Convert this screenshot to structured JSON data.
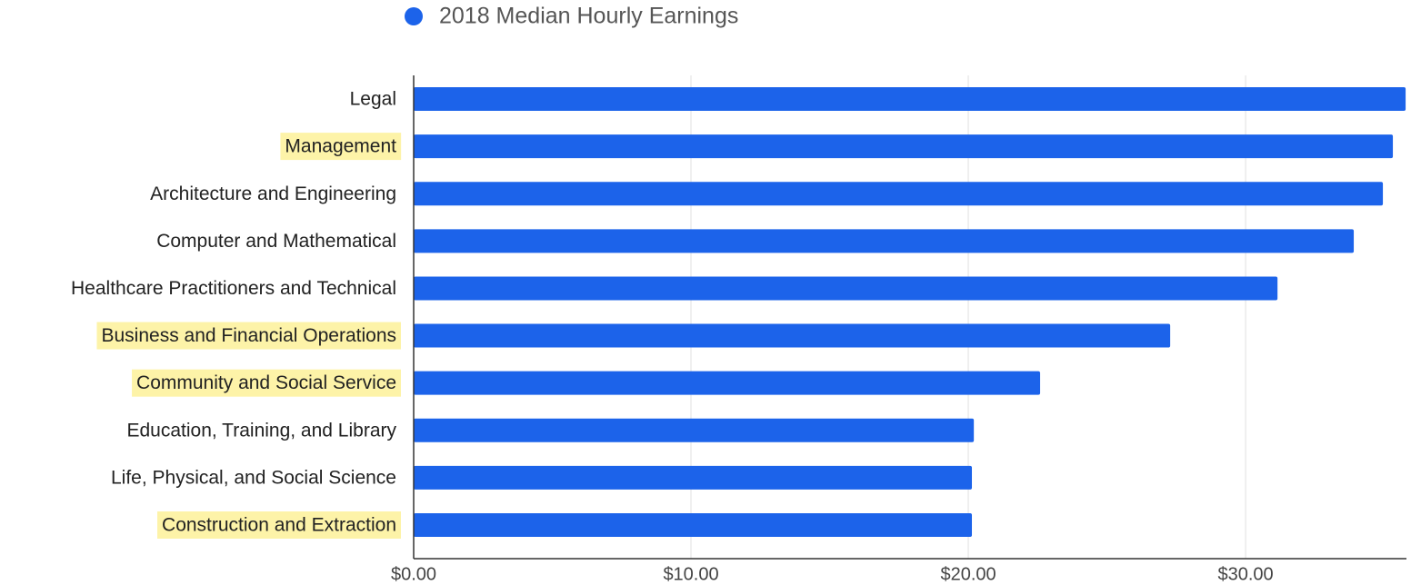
{
  "chart_data": {
    "type": "barh",
    "series": [
      {
        "name": "2018 Median Hourly Earnings",
        "color": "#1c63ea",
        "values": [
          35.77,
          35.31,
          34.95,
          33.9,
          31.15,
          27.28,
          22.59,
          20.2,
          20.13,
          20.13
        ]
      }
    ],
    "categories": [
      "Legal",
      "Management",
      "Architecture and Engineering",
      "Computer and Mathematical",
      "Healthcare Practitioners and Technical",
      "Business and Financial Operations",
      "Community and Social Service",
      "Education, Training, and Library",
      "Life, Physical, and Social Science",
      "Construction and Extraction"
    ],
    "highlighted": [
      false,
      true,
      false,
      false,
      false,
      true,
      true,
      false,
      false,
      true
    ],
    "highlight_color": "#fdf3a8",
    "xlim": [
      0,
      35.8
    ],
    "xticks": [
      {
        "value": 0,
        "label": "$0.00"
      },
      {
        "value": 10,
        "label": "$10.00"
      },
      {
        "value": 20,
        "label": "$20.00"
      },
      {
        "value": 30,
        "label": "$30.00"
      }
    ],
    "grid": true,
    "legend": "top"
  }
}
